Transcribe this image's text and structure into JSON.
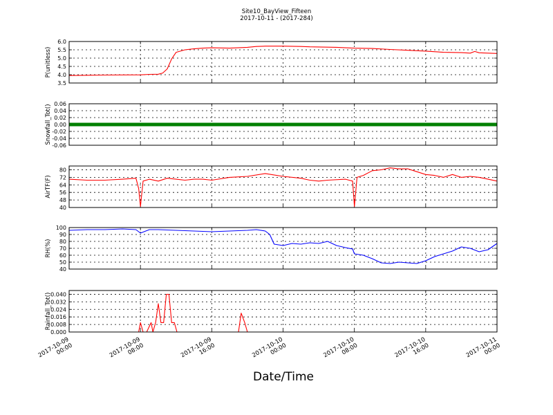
{
  "figure": {
    "title": "Site10_BayView_Fifteen",
    "subtitle": "2017-10-11 - (2017-284)",
    "xlabel": "Date/Time",
    "x_ticks": [
      {
        "line1": "2017-10-09",
        "line2": "00:00",
        "hours": 0
      },
      {
        "line1": "2017-10-09",
        "line2": "08:00",
        "hours": 8
      },
      {
        "line1": "2017-10-09",
        "line2": "16:00",
        "hours": 16
      },
      {
        "line1": "2017-10-10",
        "line2": "00:00",
        "hours": 24
      },
      {
        "line1": "2017-10-10",
        "line2": "08:00",
        "hours": 32
      },
      {
        "line1": "2017-10-10",
        "line2": "16:00",
        "hours": 40
      },
      {
        "line1": "2017-10-11",
        "line2": "00:00",
        "hours": 48
      }
    ]
  },
  "chart_data": [
    {
      "type": "line",
      "ylabel": "P(unitless)",
      "ylim": [
        3.5,
        6.0
      ],
      "yticks": [
        "3.5",
        "4.0",
        "4.5",
        "5.0",
        "5.5",
        "6.0"
      ],
      "grid": true,
      "series": [
        {
          "color": "#ff0000",
          "x": [
            0,
            4,
            8,
            9,
            10,
            10.5,
            11,
            11.5,
            12,
            13,
            14,
            15,
            16,
            18,
            20,
            21,
            22,
            24,
            26,
            27,
            28,
            30,
            32,
            34,
            36,
            38,
            40,
            42,
            44,
            45,
            45.5,
            46,
            47,
            48
          ],
          "y": [
            3.95,
            3.98,
            3.99,
            4.02,
            4.03,
            4.1,
            4.35,
            4.95,
            5.35,
            5.5,
            5.56,
            5.6,
            5.62,
            5.6,
            5.65,
            5.7,
            5.72,
            5.72,
            5.7,
            5.68,
            5.67,
            5.65,
            5.6,
            5.58,
            5.52,
            5.47,
            5.42,
            5.35,
            5.33,
            5.3,
            5.4,
            5.32,
            5.3,
            5.28
          ]
        }
      ]
    },
    {
      "type": "line",
      "ylabel": "Snowfall_Tot()",
      "ylim": [
        -0.06,
        0.06
      ],
      "yticks": [
        "-0.06",
        "-0.04",
        "-0.02",
        "0.00",
        "0.02",
        "0.04",
        "0.06"
      ],
      "grid": true,
      "series": [
        {
          "color": "#008000",
          "marker": "dot",
          "x": [
            0,
            48
          ],
          "y": [
            0,
            0
          ]
        }
      ]
    },
    {
      "type": "line",
      "ylabel": "AirTF(F)",
      "ylim": [
        40,
        84
      ],
      "yticks": [
        "40",
        "48",
        "56",
        "64",
        "72",
        "80"
      ],
      "grid": true,
      "series": [
        {
          "color": "#ff0000",
          "x": [
            0,
            2,
            4,
            6,
            7.5,
            7.8,
            8,
            8.3,
            9,
            10,
            11,
            12,
            13,
            14,
            15,
            16,
            18,
            20,
            22,
            24,
            26,
            27,
            28,
            29,
            31,
            31.8,
            32,
            32.3,
            33,
            34,
            35,
            36,
            37,
            38,
            39,
            40,
            41,
            42,
            43,
            44,
            45,
            46,
            47,
            48
          ],
          "y": [
            70,
            69,
            69,
            70,
            71,
            60,
            41,
            68,
            70,
            68,
            71,
            70,
            69,
            70,
            70,
            69,
            72,
            73,
            76,
            73,
            71,
            69,
            68,
            69,
            70,
            68,
            41,
            72,
            74,
            79,
            80,
            82,
            81,
            81,
            78,
            75,
            74,
            72,
            75,
            72,
            73,
            72,
            70,
            68
          ]
        }
      ]
    },
    {
      "type": "line",
      "ylabel": "RH(%)",
      "ylim": [
        40,
        100
      ],
      "yticks": [
        "40",
        "50",
        "60",
        "70",
        "80",
        "90",
        "100"
      ],
      "grid": true,
      "series": [
        {
          "color": "#0000ff",
          "x": [
            0,
            2,
            4,
            6,
            7.5,
            8,
            9,
            10,
            12,
            14,
            16,
            18,
            20,
            21,
            22,
            22.5,
            23,
            24,
            25,
            26,
            27,
            28,
            29,
            30,
            31,
            31.8,
            32,
            33,
            34,
            35,
            36,
            37,
            38,
            39,
            40,
            41,
            42,
            43,
            44,
            45,
            46,
            47,
            48
          ],
          "y": [
            96,
            97,
            97,
            98,
            97,
            92,
            97,
            97,
            96,
            95,
            94,
            95,
            96,
            97,
            95,
            90,
            76,
            74,
            77,
            76,
            78,
            77,
            80,
            74,
            71,
            69,
            62,
            60,
            55,
            49,
            48,
            50,
            49,
            48,
            52,
            58,
            62,
            66,
            72,
            70,
            65,
            68,
            77
          ]
        }
      ]
    },
    {
      "type": "line",
      "ylabel": "Rainfall_Tot()",
      "ylim": [
        0,
        0.044
      ],
      "yticks": [
        "0.000",
        "0.008",
        "0.016",
        "0.024",
        "0.032",
        "0.040"
      ],
      "grid": true,
      "series": [
        {
          "color": "#ff0000",
          "x": [
            0,
            7.8,
            8.0,
            8.3,
            8.7,
            9.2,
            9.4,
            9.7,
            10.0,
            10.3,
            10.6,
            10.9,
            11.2,
            11.5,
            11.8,
            12.1,
            12.5,
            19.0,
            19.3,
            19.7,
            20.0,
            48
          ],
          "y": [
            0,
            0,
            0.01,
            0,
            0,
            0.01,
            0,
            0.01,
            0.03,
            0.01,
            0.01,
            0.04,
            0.04,
            0.01,
            0.01,
            0,
            0,
            0,
            0.02,
            0.01,
            0,
            0
          ]
        }
      ]
    }
  ]
}
